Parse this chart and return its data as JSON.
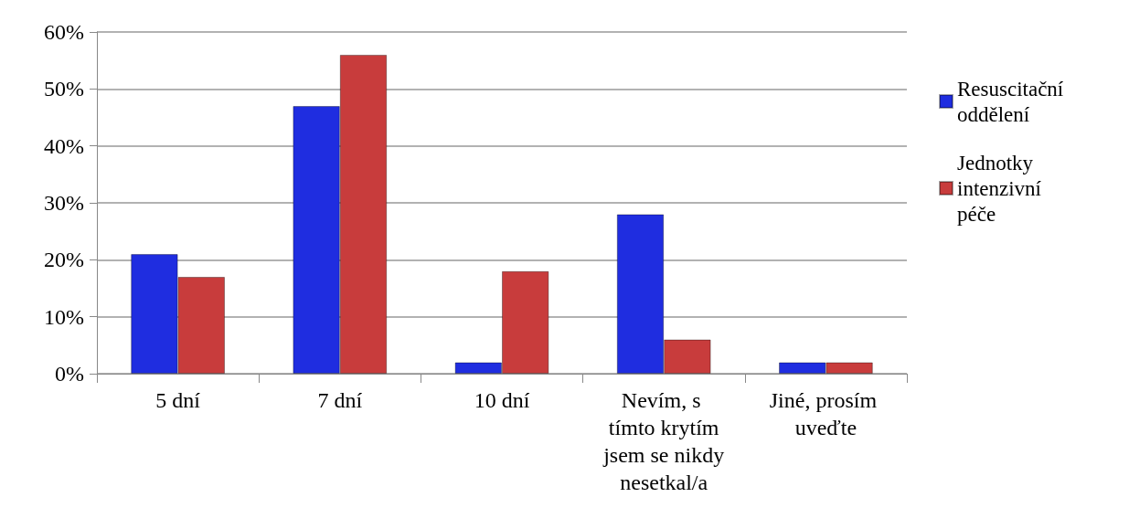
{
  "chart_data": {
    "type": "bar",
    "categories": [
      "5 dní",
      "7 dní",
      "10 dní",
      "Nevím, s tímto krytím jsem se nikdy nesetkal/a",
      "Jiné, prosím uveďte"
    ],
    "series": [
      {
        "name": "Resuscitační oddělení",
        "color": "#1f2de0",
        "values": [
          21,
          47,
          2,
          28,
          2
        ]
      },
      {
        "name": "Jednotky intenzivní péče",
        "color": "#c83c3c",
        "values": [
          17,
          56,
          18,
          6,
          2
        ]
      }
    ],
    "ylim": [
      0,
      60
    ],
    "yticks": [
      {
        "value": 0,
        "label": "0%"
      },
      {
        "value": 10,
        "label": "10%"
      },
      {
        "value": 20,
        "label": "20%"
      },
      {
        "value": 30,
        "label": "30%"
      },
      {
        "value": 40,
        "label": "40%"
      },
      {
        "value": 50,
        "label": "50%"
      },
      {
        "value": 60,
        "label": "60%"
      }
    ],
    "grid": "y",
    "legend": "right"
  }
}
